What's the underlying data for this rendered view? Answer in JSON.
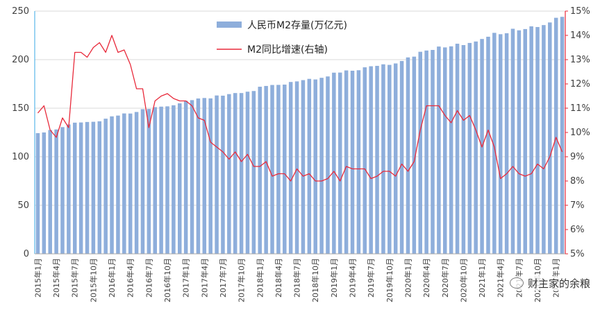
{
  "chart_data": {
    "type": "bar+line",
    "title": "",
    "legend": {
      "placement": "top-center",
      "bar_label": "人民币M2存量(万亿元)",
      "line_label": "M2同比增速(右轴)"
    },
    "colors": {
      "bar": "#8eaedb",
      "line": "#e8293a",
      "left_axis": "#5bb8e8",
      "right_axis": "#e8293a",
      "grid": "#d9d9d9"
    },
    "y_left": {
      "min": 0,
      "max": 250,
      "ticks": [
        "0",
        "50",
        "100",
        "150",
        "200",
        "250"
      ]
    },
    "y_right": {
      "min": 5,
      "max": 15,
      "ticks": [
        "5%",
        "6%",
        "7%",
        "8%",
        "9%",
        "10%",
        "11%",
        "12%",
        "13%",
        "14%",
        "15%"
      ]
    },
    "x_tick_labels": [
      {
        "i": 0,
        "label": "2015年1月"
      },
      {
        "i": 3,
        "label": "2015年4月"
      },
      {
        "i": 6,
        "label": "2015年7月"
      },
      {
        "i": 9,
        "label": "2015年10月"
      },
      {
        "i": 12,
        "label": "2016年1月"
      },
      {
        "i": 15,
        "label": "2016年4月"
      },
      {
        "i": 18,
        "label": "2016年7月"
      },
      {
        "i": 21,
        "label": "2016年10月"
      },
      {
        "i": 24,
        "label": "2017年1月"
      },
      {
        "i": 27,
        "label": "2017年4月"
      },
      {
        "i": 30,
        "label": "2017年7月"
      },
      {
        "i": 33,
        "label": "2017年10月"
      },
      {
        "i": 36,
        "label": "2018年1月"
      },
      {
        "i": 39,
        "label": "2018年4月"
      },
      {
        "i": 42,
        "label": "2018年7月"
      },
      {
        "i": 45,
        "label": "2018年10月"
      },
      {
        "i": 48,
        "label": "2019年1月"
      },
      {
        "i": 51,
        "label": "2019年4月"
      },
      {
        "i": 54,
        "label": "2019年7月"
      },
      {
        "i": 57,
        "label": "2019年10月"
      },
      {
        "i": 60,
        "label": "2020年1月"
      },
      {
        "i": 63,
        "label": "2020年4月"
      },
      {
        "i": 66,
        "label": "2020年7月"
      },
      {
        "i": 69,
        "label": "2020年10月"
      },
      {
        "i": 72,
        "label": "2021年1月"
      },
      {
        "i": 75,
        "label": "2021年4月"
      },
      {
        "i": 78,
        "label": "2021年7月"
      },
      {
        "i": 81,
        "label": "2021年10月"
      },
      {
        "i": 84,
        "label": "2022年1月"
      }
    ],
    "series": [
      {
        "name": "人民币M2存量(万亿元)",
        "kind": "bar",
        "axis": "left",
        "values": [
          124.3,
          125.0,
          127.5,
          128.1,
          130.5,
          133.3,
          135.1,
          135.3,
          135.8,
          136.0,
          136.5,
          139.2,
          141.6,
          142.4,
          144.6,
          144.5,
          146.1,
          149.0,
          149.2,
          151.1,
          151.6,
          151.9,
          153.0,
          155.0,
          157.6,
          158.3,
          160.0,
          160.5,
          160.1,
          163.1,
          162.9,
          164.5,
          165.6,
          165.6,
          167.0,
          167.7,
          172.1,
          172.9,
          173.9,
          174.0,
          174.3,
          177.0,
          177.6,
          178.9,
          180.2,
          179.6,
          181.3,
          182.7,
          186.6,
          186.7,
          188.9,
          188.6,
          189.1,
          192.1,
          193.2,
          193.6,
          195.2,
          194.6,
          196.1,
          198.6,
          202.3,
          203.1,
          208.1,
          209.4,
          210.0,
          213.5,
          212.6,
          213.7,
          216.4,
          215.0,
          217.2,
          218.7,
          221.3,
          223.6,
          227.6,
          226.2,
          227.2,
          231.8,
          230.2,
          231.5,
          234.3,
          233.6,
          235.6,
          238.3,
          243.1,
          244.1
        ]
      },
      {
        "name": "M2同比增速(右轴)",
        "kind": "line",
        "axis": "right",
        "values": [
          10.8,
          11.1,
          10.1,
          9.8,
          10.6,
          10.2,
          13.3,
          13.3,
          13.1,
          13.5,
          13.7,
          13.3,
          14.0,
          13.3,
          13.4,
          12.8,
          11.8,
          11.8,
          10.2,
          11.3,
          11.5,
          11.6,
          11.4,
          11.3,
          11.3,
          11.1,
          10.6,
          10.5,
          9.6,
          9.4,
          9.2,
          8.9,
          9.2,
          8.8,
          9.1,
          8.6,
          8.6,
          8.8,
          8.2,
          8.3,
          8.3,
          8.0,
          8.5,
          8.2,
          8.3,
          8.0,
          8.0,
          8.1,
          8.4,
          8.0,
          8.6,
          8.5,
          8.5,
          8.5,
          8.1,
          8.2,
          8.4,
          8.4,
          8.2,
          8.7,
          8.4,
          8.8,
          10.1,
          11.1,
          11.1,
          11.1,
          10.7,
          10.4,
          10.9,
          10.5,
          10.7,
          10.1,
          9.4,
          10.1,
          9.4,
          8.1,
          8.3,
          8.6,
          8.3,
          8.2,
          8.3,
          8.7,
          8.5,
          9.0,
          9.8,
          9.2
        ]
      }
    ]
  },
  "watermark": {
    "text": "财主家的余粮",
    "icon": "wechat-icon"
  }
}
